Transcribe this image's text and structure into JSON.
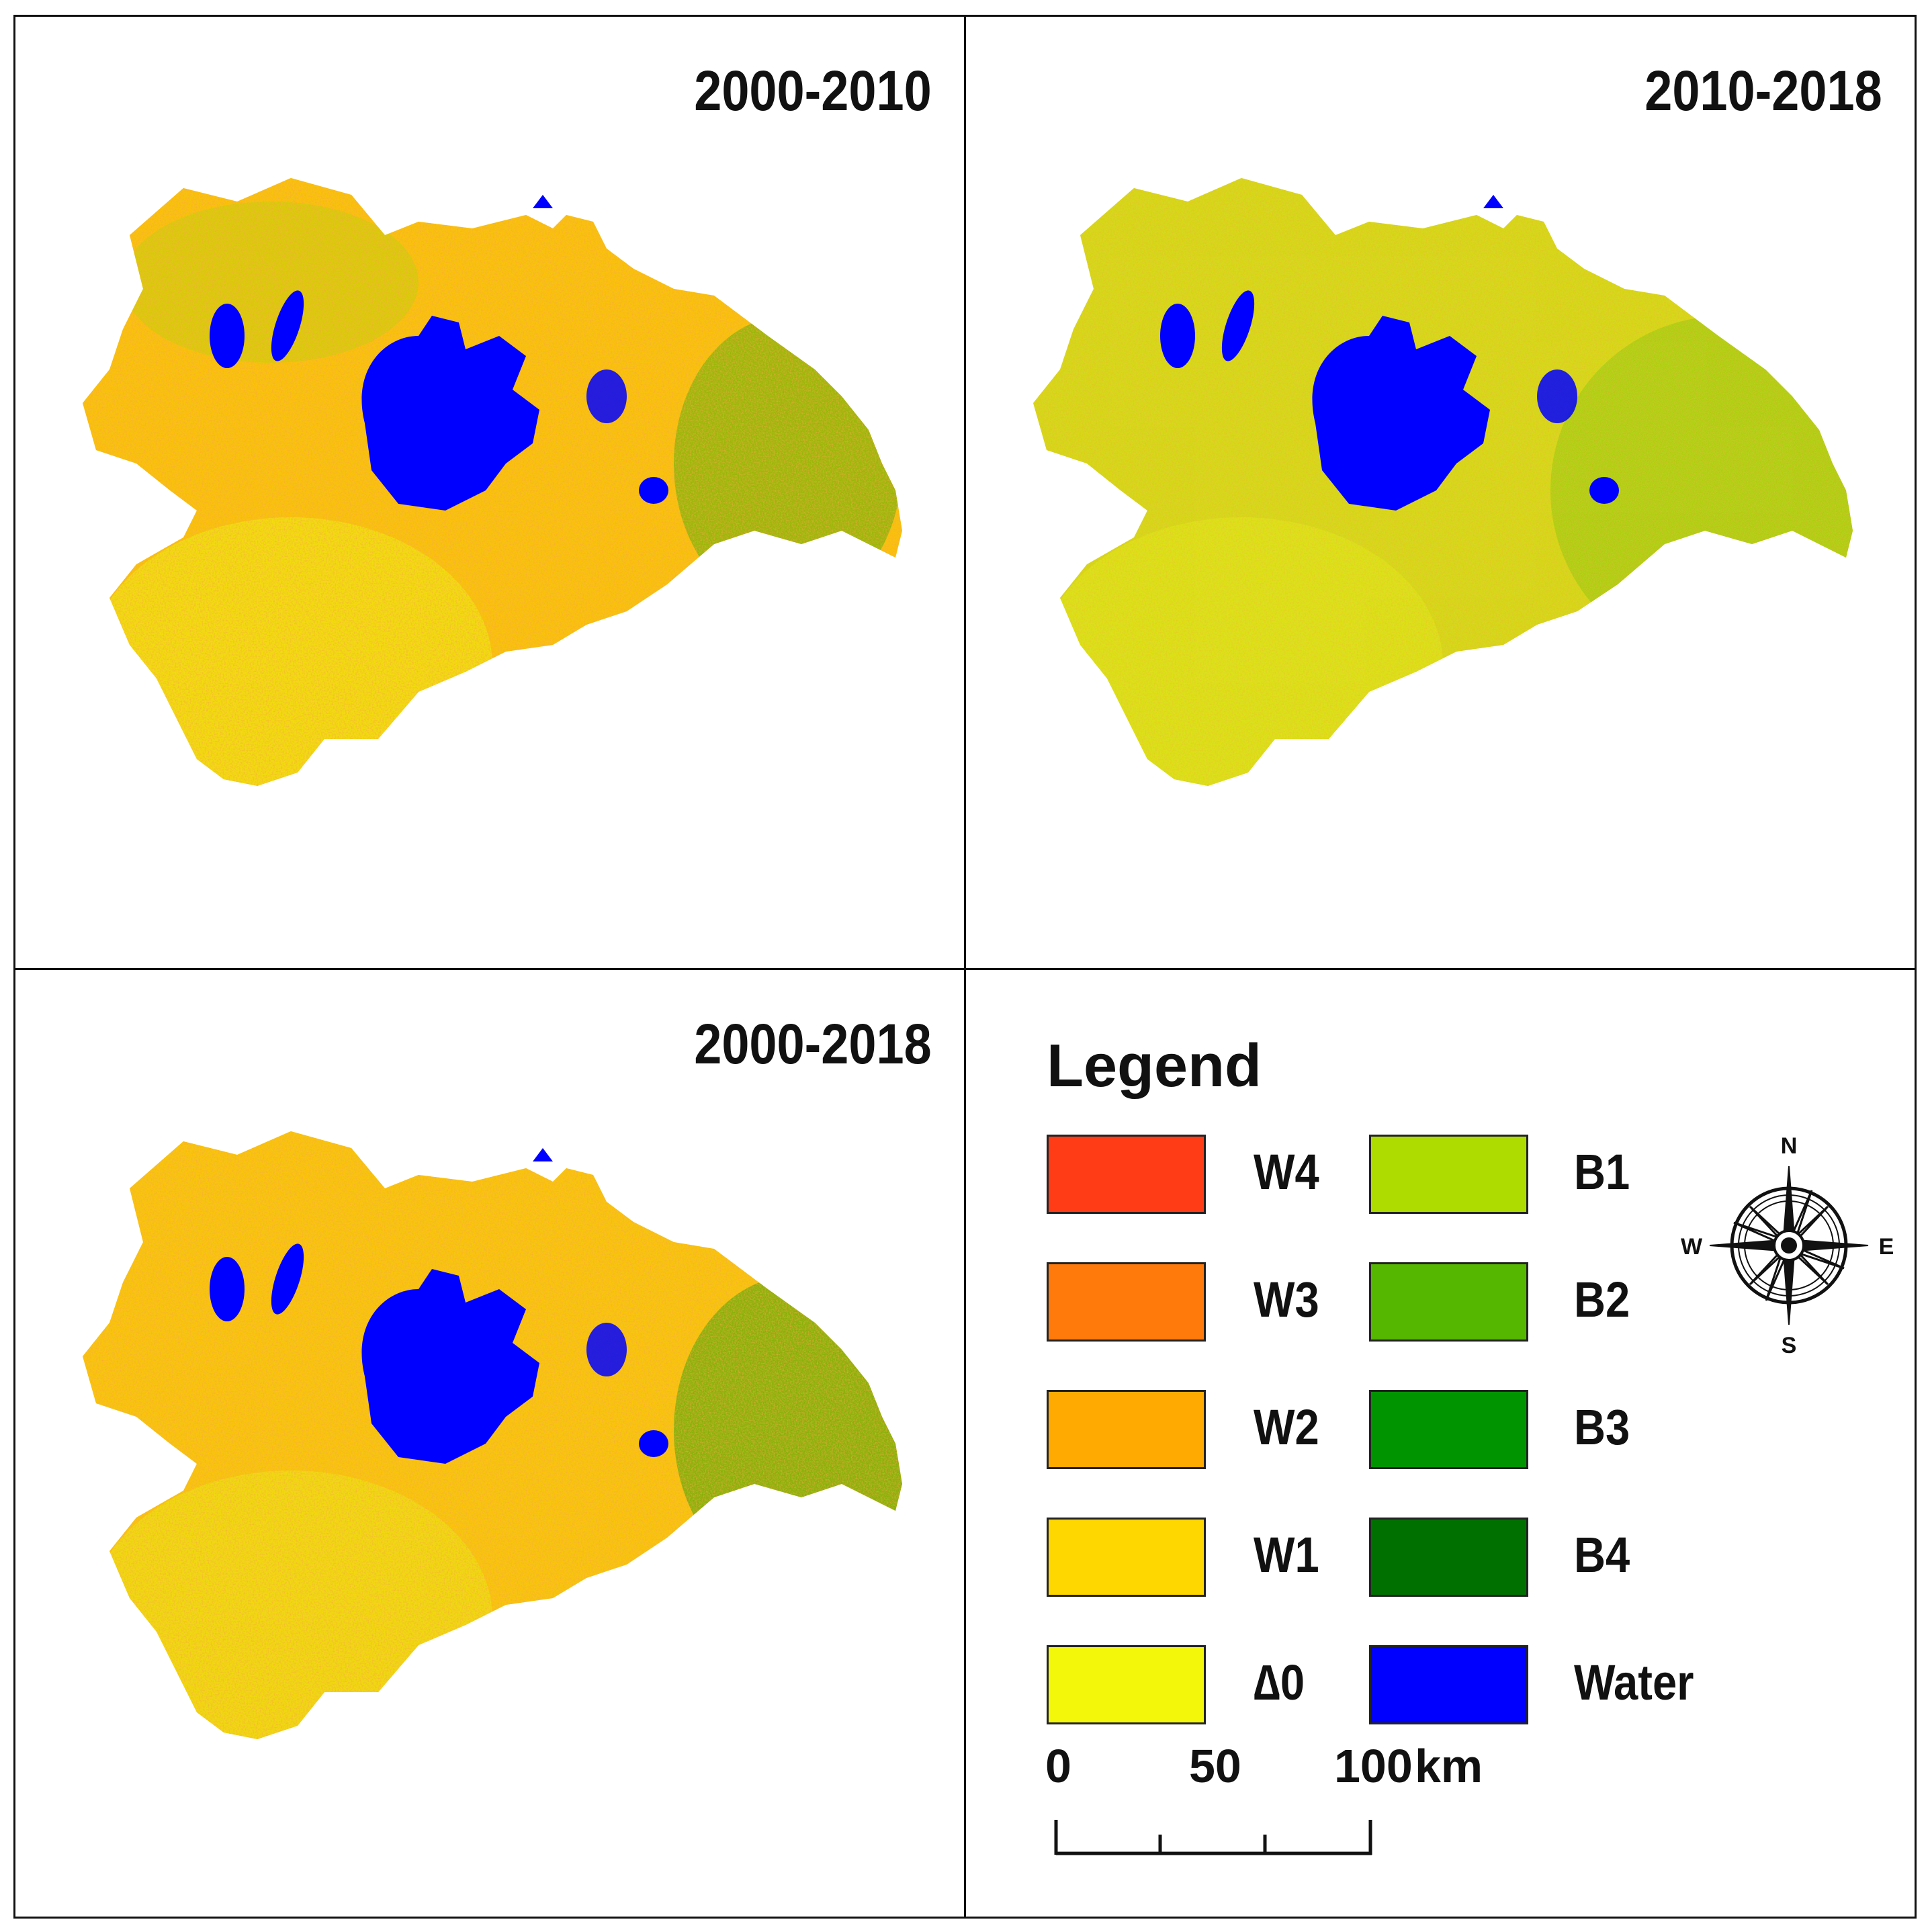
{
  "panels": [
    {
      "title": "2000-2010"
    },
    {
      "title": "2010-2018"
    },
    {
      "title": "2000-2018"
    }
  ],
  "legend": {
    "title": "Legend",
    "left_items": [
      {
        "label": "W4",
        "color": "#ff3c16"
      },
      {
        "label": "W3",
        "color": "#ff7a0a"
      },
      {
        "label": "W2",
        "color": "#ffaa00"
      },
      {
        "label": "W1",
        "color": "#ffd700"
      },
      {
        "label": "∆0",
        "color": "#f3f80a"
      }
    ],
    "right_items": [
      {
        "label": "B1",
        "color": "#aedc00"
      },
      {
        "label": "B2",
        "color": "#55b700"
      },
      {
        "label": "B3",
        "color": "#009500"
      },
      {
        "label": "B4",
        "color": "#007000"
      },
      {
        "label": "Water",
        "color": "#0000ff"
      }
    ]
  },
  "scale_bar": {
    "labels": [
      "0",
      "50",
      "100"
    ],
    "unit": "km"
  },
  "compass": {
    "n": "N",
    "s": "S",
    "e": "E",
    "w": "W"
  }
}
